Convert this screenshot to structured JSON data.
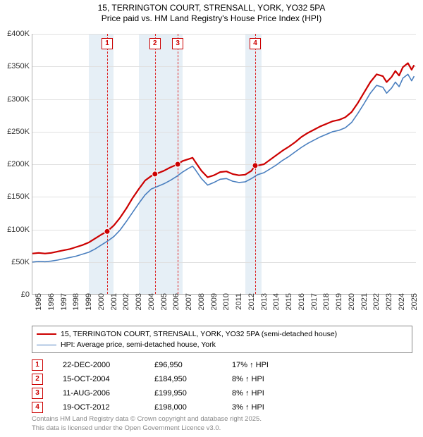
{
  "title_line1": "15, TERRINGTON COURT, STRENSALL, YORK, YO32 5PA",
  "title_line2": "Price paid vs. HM Land Registry's House Price Index (HPI)",
  "title_fontsize": 12,
  "chart": {
    "type": "line",
    "background_color": "#ffffff",
    "grid_color": "#e0e0e0",
    "axis_color": "#b0b0b0",
    "x": {
      "min": 1995,
      "max": 2025.7,
      "ticks": [
        1995,
        1996,
        1997,
        1998,
        1999,
        2000,
        2001,
        2002,
        2003,
        2004,
        2005,
        2006,
        2007,
        2008,
        2009,
        2010,
        2011,
        2012,
        2013,
        2014,
        2015,
        2016,
        2017,
        2018,
        2019,
        2020,
        2021,
        2022,
        2023,
        2024,
        2025
      ]
    },
    "y": {
      "min": 0,
      "max": 400000,
      "ticks": [
        0,
        50000,
        100000,
        150000,
        200000,
        250000,
        300000,
        350000,
        400000
      ],
      "tick_labels": [
        "£0",
        "£50K",
        "£100K",
        "£150K",
        "£200K",
        "£250K",
        "£300K",
        "£350K",
        "£400K"
      ]
    },
    "shaded_ranges": [
      {
        "from": 1999.5,
        "to": 2001.5,
        "color": "#dce8f2"
      },
      {
        "from": 2003.5,
        "to": 2007.0,
        "color": "#dce8f2"
      },
      {
        "from": 2012.0,
        "to": 2013.3,
        "color": "#dce8f2"
      }
    ],
    "series": [
      {
        "id": "price_paid",
        "label": "15, TERRINGTON COURT, STRENSALL, YORK, YO32 5PA (semi-detached house)",
        "color": "#cc0000",
        "width": 2.2,
        "points": [
          [
            1995.0,
            63000
          ],
          [
            1995.5,
            64000
          ],
          [
            1996.0,
            63000
          ],
          [
            1996.5,
            64000
          ],
          [
            1997.0,
            66000
          ],
          [
            1997.5,
            68000
          ],
          [
            1998.0,
            70000
          ],
          [
            1998.5,
            73000
          ],
          [
            1999.0,
            76000
          ],
          [
            1999.5,
            80000
          ],
          [
            2000.0,
            86000
          ],
          [
            2000.5,
            92000
          ],
          [
            2000.97,
            96950
          ],
          [
            2001.5,
            106000
          ],
          [
            2002.0,
            118000
          ],
          [
            2002.5,
            132000
          ],
          [
            2003.0,
            148000
          ],
          [
            2003.5,
            162000
          ],
          [
            2004.0,
            175000
          ],
          [
            2004.5,
            182000
          ],
          [
            2004.79,
            184950
          ],
          [
            2005.0,
            186000
          ],
          [
            2005.5,
            190000
          ],
          [
            2006.0,
            195000
          ],
          [
            2006.61,
            199950
          ],
          [
            2007.0,
            205000
          ],
          [
            2007.5,
            208000
          ],
          [
            2007.8,
            210000
          ],
          [
            2008.0,
            204000
          ],
          [
            2008.5,
            190000
          ],
          [
            2009.0,
            180000
          ],
          [
            2009.5,
            183000
          ],
          [
            2010.0,
            188000
          ],
          [
            2010.5,
            189000
          ],
          [
            2011.0,
            185000
          ],
          [
            2011.5,
            183000
          ],
          [
            2012.0,
            184000
          ],
          [
            2012.5,
            190000
          ],
          [
            2012.8,
            198000
          ],
          [
            2013.0,
            198000
          ],
          [
            2013.5,
            200000
          ],
          [
            2014.0,
            207000
          ],
          [
            2014.5,
            214000
          ],
          [
            2015.0,
            221000
          ],
          [
            2015.5,
            227000
          ],
          [
            2016.0,
            234000
          ],
          [
            2016.5,
            242000
          ],
          [
            2017.0,
            248000
          ],
          [
            2017.5,
            253000
          ],
          [
            2018.0,
            258000
          ],
          [
            2018.5,
            262000
          ],
          [
            2019.0,
            266000
          ],
          [
            2019.5,
            268000
          ],
          [
            2020.0,
            272000
          ],
          [
            2020.5,
            280000
          ],
          [
            2021.0,
            294000
          ],
          [
            2021.5,
            310000
          ],
          [
            2022.0,
            326000
          ],
          [
            2022.5,
            338000
          ],
          [
            2023.0,
            335000
          ],
          [
            2023.3,
            326000
          ],
          [
            2023.7,
            334000
          ],
          [
            2024.0,
            343000
          ],
          [
            2024.3,
            336000
          ],
          [
            2024.6,
            349000
          ],
          [
            2025.0,
            355000
          ],
          [
            2025.3,
            345000
          ],
          [
            2025.5,
            352000
          ]
        ]
      },
      {
        "id": "hpi",
        "label": "HPI: Average price, semi-detached house, York",
        "color": "#4a7fbf",
        "width": 1.6,
        "points": [
          [
            1995.0,
            50000
          ],
          [
            1995.5,
            51000
          ],
          [
            1996.0,
            50500
          ],
          [
            1996.5,
            51500
          ],
          [
            1997.0,
            53000
          ],
          [
            1997.5,
            55000
          ],
          [
            1998.0,
            57000
          ],
          [
            1998.5,
            59000
          ],
          [
            1999.0,
            62000
          ],
          [
            1999.5,
            65000
          ],
          [
            2000.0,
            70000
          ],
          [
            2000.5,
            76000
          ],
          [
            2001.0,
            82000
          ],
          [
            2001.5,
            89000
          ],
          [
            2002.0,
            99000
          ],
          [
            2002.5,
            112000
          ],
          [
            2003.0,
            126000
          ],
          [
            2003.5,
            140000
          ],
          [
            2004.0,
            153000
          ],
          [
            2004.5,
            162000
          ],
          [
            2005.0,
            166000
          ],
          [
            2005.5,
            170000
          ],
          [
            2006.0,
            175000
          ],
          [
            2006.5,
            181000
          ],
          [
            2007.0,
            188000
          ],
          [
            2007.5,
            194000
          ],
          [
            2007.8,
            197000
          ],
          [
            2008.0,
            192000
          ],
          [
            2008.5,
            178000
          ],
          [
            2009.0,
            168000
          ],
          [
            2009.5,
            172000
          ],
          [
            2010.0,
            177000
          ],
          [
            2010.5,
            178000
          ],
          [
            2011.0,
            174000
          ],
          [
            2011.5,
            172000
          ],
          [
            2012.0,
            173000
          ],
          [
            2012.5,
            178000
          ],
          [
            2013.0,
            184000
          ],
          [
            2013.5,
            187000
          ],
          [
            2014.0,
            193000
          ],
          [
            2014.5,
            199000
          ],
          [
            2015.0,
            206000
          ],
          [
            2015.5,
            212000
          ],
          [
            2016.0,
            219000
          ],
          [
            2016.5,
            226000
          ],
          [
            2017.0,
            232000
          ],
          [
            2017.5,
            237000
          ],
          [
            2018.0,
            242000
          ],
          [
            2018.5,
            246000
          ],
          [
            2019.0,
            250000
          ],
          [
            2019.5,
            252000
          ],
          [
            2020.0,
            256000
          ],
          [
            2020.5,
            264000
          ],
          [
            2021.0,
            278000
          ],
          [
            2021.5,
            293000
          ],
          [
            2022.0,
            309000
          ],
          [
            2022.5,
            321000
          ],
          [
            2023.0,
            318000
          ],
          [
            2023.3,
            309000
          ],
          [
            2023.7,
            317000
          ],
          [
            2024.0,
            326000
          ],
          [
            2024.3,
            319000
          ],
          [
            2024.6,
            332000
          ],
          [
            2025.0,
            338000
          ],
          [
            2025.3,
            328000
          ],
          [
            2025.5,
            335000
          ]
        ]
      }
    ],
    "sale_events": [
      {
        "n": "1",
        "year": 2000.97,
        "price": 96950
      },
      {
        "n": "2",
        "year": 2004.79,
        "price": 184950
      },
      {
        "n": "3",
        "year": 2006.61,
        "price": 199950
      },
      {
        "n": "4",
        "year": 2012.8,
        "price": 198000
      }
    ],
    "event_line_color": "#d22222",
    "event_box_border": "#cc0000",
    "tick_fontsize": 11
  },
  "legend": {
    "border_color": "#888888",
    "fontsize": 10.5,
    "items": [
      {
        "color": "#cc0000",
        "width": 2.2,
        "label": "15, TERRINGTON COURT, STRENSALL, YORK, YO32 5PA (semi-detached house)"
      },
      {
        "color": "#4a7fbf",
        "width": 1.6,
        "label": "HPI: Average price, semi-detached house, York"
      }
    ]
  },
  "sales_table": {
    "fontsize": 11,
    "rows": [
      {
        "n": "1",
        "date": "22-DEC-2000",
        "price": "£96,950",
        "diff": "17% ↑ HPI"
      },
      {
        "n": "2",
        "date": "15-OCT-2004",
        "price": "£184,950",
        "diff": "8% ↑ HPI"
      },
      {
        "n": "3",
        "date": "11-AUG-2006",
        "price": "£199,950",
        "diff": "8% ↑ HPI"
      },
      {
        "n": "4",
        "date": "19-OCT-2012",
        "price": "£198,000",
        "diff": "3% ↑ HPI"
      }
    ]
  },
  "footer": {
    "line1": "Contains HM Land Registry data © Crown copyright and database right 2025.",
    "line2": "This data is licensed under the Open Government Licence v3.0.",
    "color": "#888888",
    "fontsize": 9.5
  }
}
